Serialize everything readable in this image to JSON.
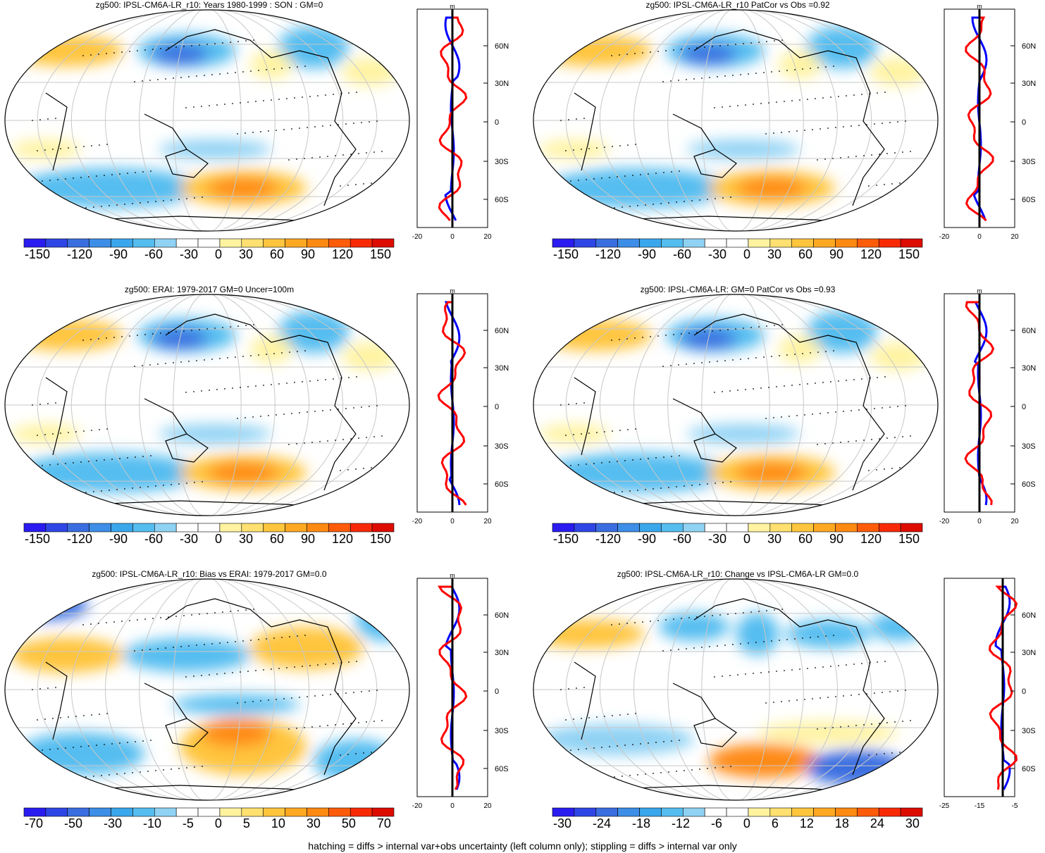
{
  "panels": [
    {
      "title": "zg500: IPSL-CM6A-LR_r10: Years 1980-1999 : SON : GM=0",
      "cbar_labels": [
        "-150",
        "-120",
        "-90",
        "-60",
        "-30",
        "0",
        "30",
        "60",
        "90",
        "120",
        "150"
      ],
      "profile_x": [
        "-20",
        "0",
        "20"
      ],
      "profile_unit": "m"
    },
    {
      "title": "zg500: IPSL-CM6A-LR_r10 PatCor vs Obs =0.92",
      "cbar_labels": [
        "-150",
        "-120",
        "-90",
        "-60",
        "-30",
        "0",
        "30",
        "60",
        "90",
        "120",
        "150"
      ],
      "profile_x": [
        "-20",
        "0",
        "20"
      ],
      "profile_unit": "m"
    },
    {
      "title": "zg500: ERAI: 1979-2017 GM=0 Uncer=100m",
      "cbar_labels": [
        "-150",
        "-120",
        "-90",
        "-60",
        "-30",
        "0",
        "30",
        "60",
        "90",
        "120",
        "150"
      ],
      "profile_x": [
        "-20",
        "0",
        "20"
      ],
      "profile_unit": "m"
    },
    {
      "title": "zg500: IPSL-CM6A-LR: GM=0 PatCor vs Obs =0.93",
      "cbar_labels": [
        "-150",
        "-120",
        "-90",
        "-60",
        "-30",
        "0",
        "30",
        "60",
        "90",
        "120",
        "150"
      ],
      "profile_x": [
        "-20",
        "0",
        "20"
      ],
      "profile_unit": "m"
    },
    {
      "title": "zg500: IPSL-CM6A-LR_r10: Bias vs ERAI: 1979-2017  GM=0.0",
      "cbar_labels": [
        "-70",
        "-50",
        "-30",
        "-10",
        "-5",
        "0",
        "5",
        "10",
        "30",
        "50",
        "70"
      ],
      "profile_x": [
        "-20",
        "0",
        "20"
      ],
      "profile_unit": "m"
    },
    {
      "title": "zg500: IPSL-CM6A-LR_r10: Change vs IPSL-CM6A-LR GM=0.0",
      "cbar_labels": [
        "-30",
        "-24",
        "-18",
        "-12",
        "-6",
        "0",
        "6",
        "12",
        "18",
        "24",
        "30"
      ],
      "profile_x": [
        "-25",
        "-15",
        "-5"
      ],
      "profile_unit": ""
    }
  ],
  "lat_labels": [
    "60N",
    "30N",
    "0",
    "30S",
    "60S"
  ],
  "palette": [
    "#2a1cf0",
    "#2f46e6",
    "#3a6ee0",
    "#3d8ee6",
    "#3aa7ec",
    "#55bdf0",
    "#8fd2f4",
    "#ffffff",
    "#ffffff",
    "#fff3a0",
    "#ffe070",
    "#ffc53d",
    "#ffa822",
    "#ff8a12",
    "#ff5c0a",
    "#f82a05",
    "#dd0c00"
  ],
  "profile_colors": {
    "model": "#ff0000",
    "obs": "#0000ff",
    "zero": "#000000"
  },
  "footer": "hatching = diffs > internal var+obs uncertainty (left column only); stippling = diffs > internal var only"
}
